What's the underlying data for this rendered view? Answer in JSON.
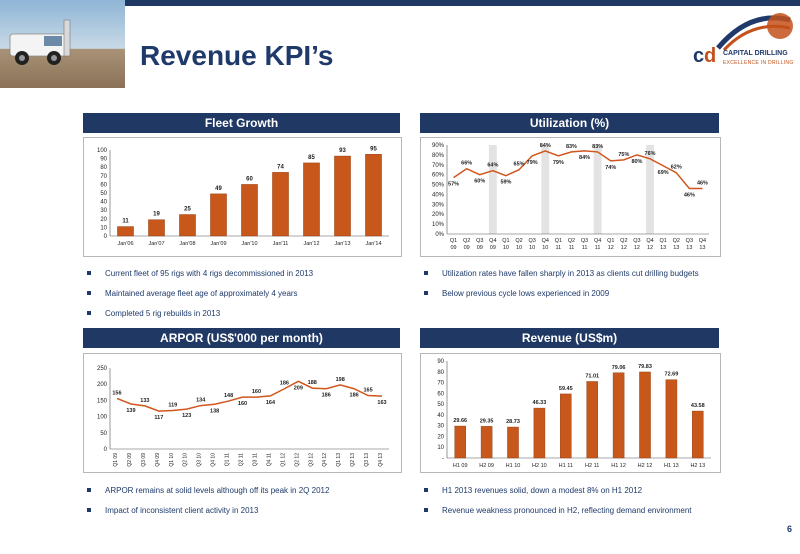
{
  "header": {
    "title": "Revenue KPI’s",
    "logo_name": "CAPITAL DRILLING",
    "logo_tagline": "EXCELLENCE IN DRILLING",
    "page_number": "6"
  },
  "panels": {
    "fleet": {
      "title": "Fleet Growth"
    },
    "utilization": {
      "title": "Utilization (%)"
    },
    "arpor": {
      "title": "ARPOR (US$'000 per month)"
    },
    "revenue": {
      "title": "Revenue (US$m)"
    }
  },
  "bullets": {
    "fleet": [
      "Current fleet of 95 rigs with 4 rigs decommissioned in 2013",
      "Maintained average fleet age of approximately 4 years",
      "Completed 5 rig rebuilds in 2013"
    ],
    "utilization": [
      "Utilization rates have fallen sharply in 2013 as clients cut drilling budgets",
      "Below previous cycle lows experienced in 2009"
    ],
    "arpor": [
      "ARPOR remains at solid levels although off its peak in 2Q 2012",
      "Impact of inconsistent client activity in 2013"
    ],
    "revenue": [
      "H1 2013 revenues solid, down a modest 8% on H1 2012",
      "Revenue weakness pronounced in H2, reflecting demand environment"
    ]
  },
  "colors": {
    "navy": "#1f3864",
    "bar": "#c8571c",
    "line": "#d0561d",
    "shade": "#e3e3e3"
  },
  "chart_data": [
    {
      "id": "fleet",
      "type": "bar",
      "categories": [
        "Jan'06",
        "Jan'07",
        "Jan'08",
        "Jan'09",
        "Jan'10",
        "Jan'11",
        "Jan'12",
        "Jan'13",
        "Jan'14"
      ],
      "values": [
        11,
        19,
        25,
        49,
        60,
        74,
        85,
        93,
        95
      ],
      "ylim": [
        0,
        100
      ],
      "yticks": [
        0,
        10,
        20,
        30,
        40,
        50,
        60,
        70,
        80,
        90,
        100
      ],
      "grid": false
    },
    {
      "id": "utilization",
      "type": "line",
      "categories": [
        [
          "Q1",
          "09"
        ],
        [
          "Q2",
          "09"
        ],
        [
          "Q3",
          "09"
        ],
        [
          "Q4",
          "09"
        ],
        [
          "Q1",
          "10"
        ],
        [
          "Q2",
          "10"
        ],
        [
          "Q3",
          "10"
        ],
        [
          "Q4",
          "10"
        ],
        [
          "Q1",
          "11"
        ],
        [
          "Q2",
          "11"
        ],
        [
          "Q3",
          "11"
        ],
        [
          "Q4",
          "11"
        ],
        [
          "Q1",
          "12"
        ],
        [
          "Q2",
          "12"
        ],
        [
          "Q3",
          "12"
        ],
        [
          "Q4",
          "12"
        ],
        [
          "Q1",
          "13"
        ],
        [
          "Q2",
          "13"
        ],
        [
          "Q3",
          "13"
        ],
        [
          "Q4",
          "13"
        ]
      ],
      "values": [
        57,
        66,
        60,
        64,
        59,
        65,
        79,
        84,
        79,
        83,
        84,
        83,
        74,
        75,
        80,
        76,
        69,
        62,
        46,
        46
      ],
      "labels": [
        "57%",
        "66%",
        "60%",
        "64%",
        "59%",
        "65%",
        "79%",
        "84%",
        "79%",
        "83%",
        "84%",
        "83%",
        "74%",
        "75%",
        "80%",
        "76%",
        "69%",
        "62%",
        "46%",
        "46%"
      ],
      "shaded_quarters": [
        3,
        7,
        11,
        15
      ],
      "ylim": [
        0,
        90
      ],
      "yticks": [
        "0%",
        "10%",
        "20%",
        "30%",
        "40%",
        "50%",
        "60%",
        "70%",
        "80%",
        "90%"
      ],
      "grid": false
    },
    {
      "id": "arpor",
      "type": "line",
      "categories": [
        "Q1 09",
        "Q2 09",
        "Q3 09",
        "Q4 09",
        "Q1 10",
        "Q2 10",
        "Q3 10",
        "Q4 10",
        "Q1 11",
        "Q2 11",
        "Q3 11",
        "Q4 11",
        "Q1 12",
        "Q2 12",
        "Q3 12",
        "Q4 12",
        "Q1 13",
        "Q2 13",
        "Q3 13",
        "Q4 13"
      ],
      "values": [
        156,
        139,
        133,
        117,
        119,
        123,
        134,
        138,
        148,
        160,
        160,
        164,
        186,
        209,
        188,
        186,
        198,
        186,
        165,
        163
      ],
      "ylim": [
        0,
        250
      ],
      "yticks": [
        0,
        50,
        100,
        150,
        200,
        250
      ],
      "grid": false
    },
    {
      "id": "revenue",
      "type": "bar",
      "categories": [
        "H1 09",
        "H2 09",
        "H1 10",
        "H2 10",
        "H1 11",
        "H2 11",
        "H1 12",
        "H2 12",
        "H1 13",
        "H2 13"
      ],
      "values": [
        29.66,
        29.35,
        28.73,
        46.33,
        59.45,
        71.01,
        79.06,
        79.83,
        72.69,
        43.58
      ],
      "labels": [
        "29.66",
        "29.35",
        "28.73",
        "46.33",
        "59.45",
        "71.01",
        "79.06",
        "79.83",
        "72.69",
        "43.58"
      ],
      "ylim": [
        0,
        90
      ],
      "yticks": [
        "-",
        "10",
        "20",
        "30",
        "40",
        "50",
        "60",
        "70",
        "80",
        "90"
      ],
      "grid": false
    }
  ]
}
